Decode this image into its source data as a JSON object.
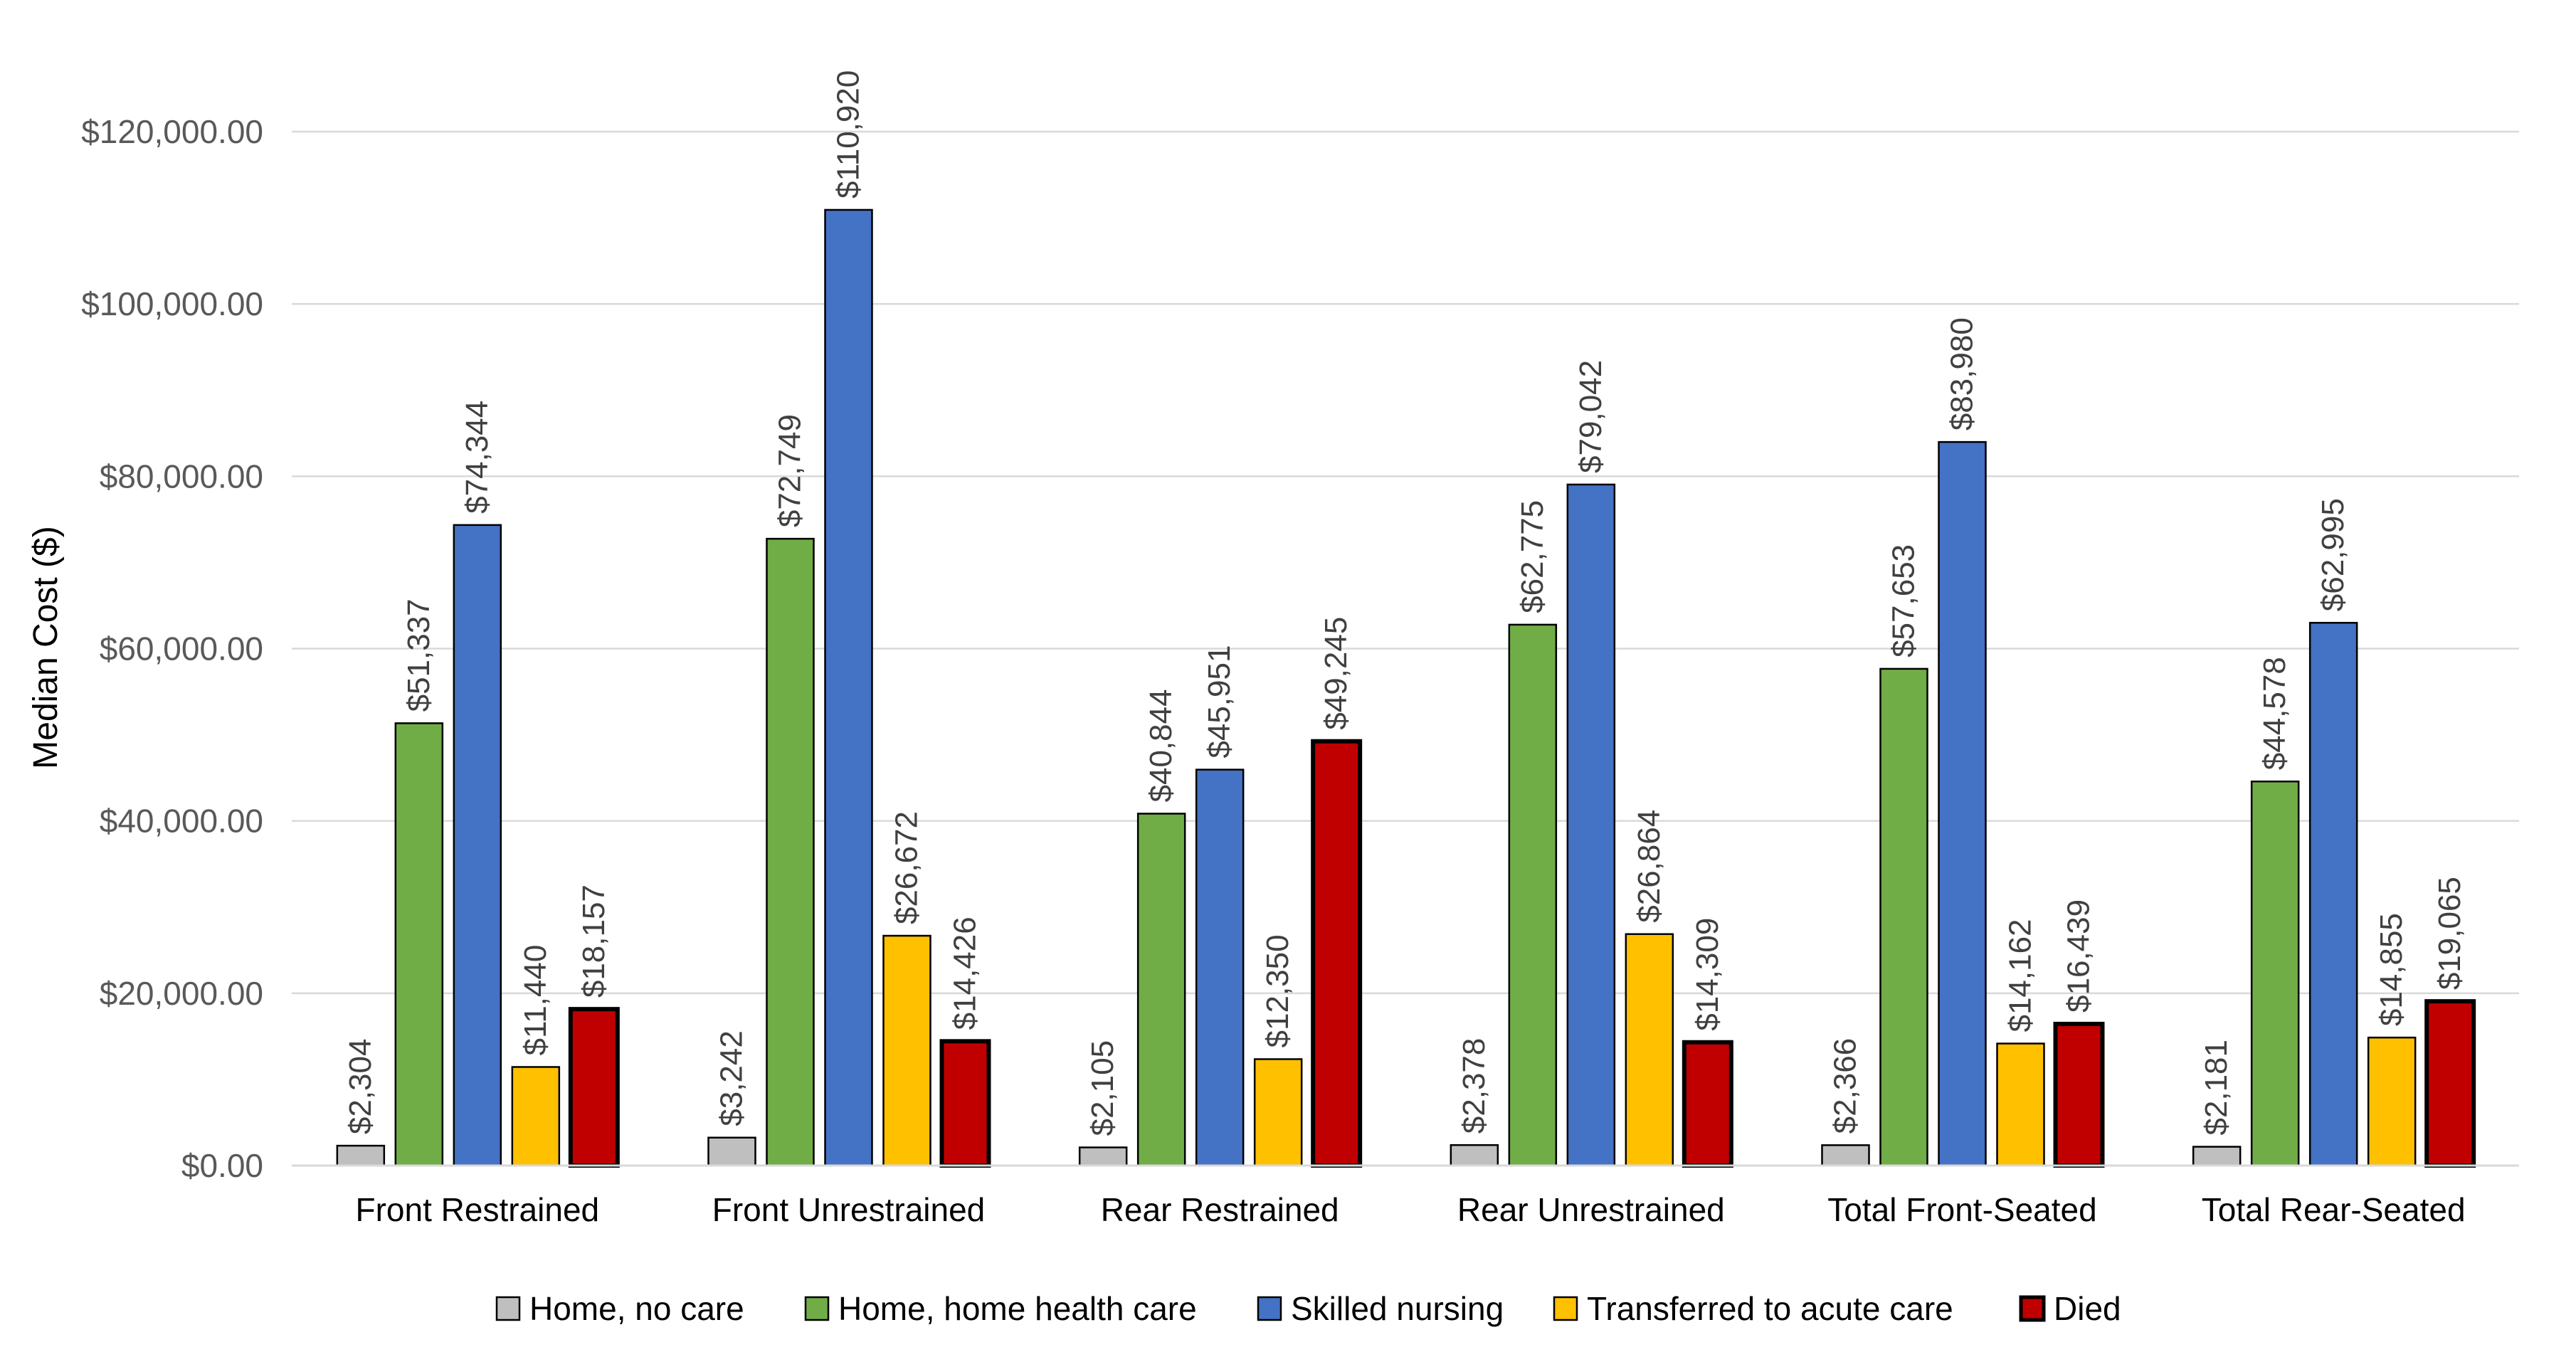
{
  "chart_data": {
    "type": "bar",
    "title": "",
    "xlabel": "",
    "ylabel": "Median Cost ($)",
    "ylim": [
      0,
      120000
    ],
    "yticks": [
      0,
      20000,
      40000,
      60000,
      80000,
      100000,
      120000
    ],
    "ytick_labels": [
      "$0.00",
      "$20,000.00",
      "$40,000.00",
      "$60,000.00",
      "$80,000.00",
      "$100,000.00",
      "$120,000.00"
    ],
    "grid": true,
    "legend_position": "bottom",
    "categories": [
      "Front Restrained",
      "Front Unrestrained",
      "Rear Restrained",
      "Rear Unrestrained",
      "Total Front-Seated",
      "Total Rear-Seated"
    ],
    "series": [
      {
        "name": "Home, no care",
        "color": "#BFBFBF",
        "values": [
          2304,
          3242,
          2105,
          2378,
          2366,
          2181
        ],
        "labels": [
          "$2,304",
          "$3,242",
          "$2,105",
          "$2,378",
          "$2,366",
          "$2,181"
        ]
      },
      {
        "name": "Home, home health care",
        "color": "#70AD47",
        "values": [
          51337,
          72749,
          40844,
          62775,
          57653,
          44578
        ],
        "labels": [
          "$51,337",
          "$72,749",
          "$40,844",
          "$62,775",
          "$57,653",
          "$44,578"
        ]
      },
      {
        "name": "Skilled nursing",
        "color": "#4472C4",
        "values": [
          74344,
          110920,
          45951,
          79042,
          83980,
          62995
        ],
        "labels": [
          "$74,344",
          "$110,920",
          "$45,951",
          "$79,042",
          "$83,980",
          "$62,995"
        ]
      },
      {
        "name": "Transferred to acute care",
        "color": "#FFC000",
        "values": [
          11440,
          26672,
          12350,
          26864,
          14162,
          14855
        ],
        "labels": [
          "$11,440",
          "$26,672",
          "$12,350",
          "$26,864",
          "$14,162",
          "$14,855"
        ]
      },
      {
        "name": "Died",
        "color": "#C00000",
        "values": [
          18157,
          14426,
          49245,
          14309,
          16439,
          19065
        ],
        "labels": [
          "$18,157",
          "$14,426",
          "$49,245",
          "$14,309",
          "$16,439",
          "$19,065"
        ]
      }
    ]
  }
}
